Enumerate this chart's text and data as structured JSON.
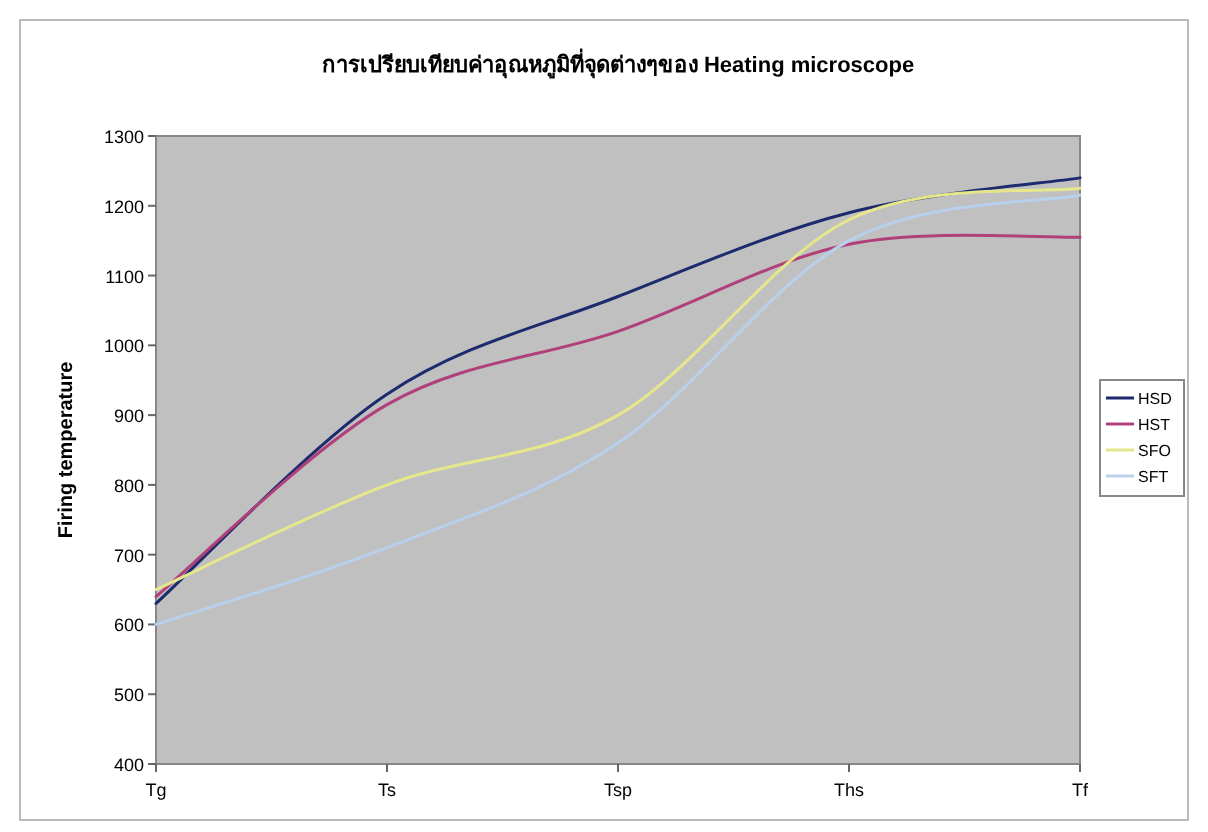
{
  "chart_data": {
    "type": "line",
    "title": "การเปรียบเทียบค่าอุณหภูมิที่จุดต่างๆของ Heating microscope",
    "ylabel": "Firing temperature",
    "categories": [
      "Tg",
      "Ts",
      "Tsp",
      "Ths",
      "Tf"
    ],
    "series": [
      {
        "name": "HSD",
        "color": "#1c2a6e",
        "values": [
          630,
          930,
          1070,
          1190,
          1240
        ]
      },
      {
        "name": "HST",
        "color": "#b0407a",
        "values": [
          640,
          915,
          1020,
          1145,
          1155
        ]
      },
      {
        "name": "SFO",
        "color": "#e6e68c",
        "values": [
          650,
          800,
          900,
          1180,
          1225
        ]
      },
      {
        "name": "SFT",
        "color": "#b8d0ec",
        "values": [
          600,
          710,
          860,
          1150,
          1215
        ]
      }
    ],
    "ylim": [
      400,
      1300
    ],
    "yticks": [
      400,
      500,
      600,
      700,
      800,
      900,
      1000,
      1100,
      1200,
      1300
    ],
    "grid": false,
    "legend": "right",
    "marker": "none",
    "line_style": "solid"
  }
}
